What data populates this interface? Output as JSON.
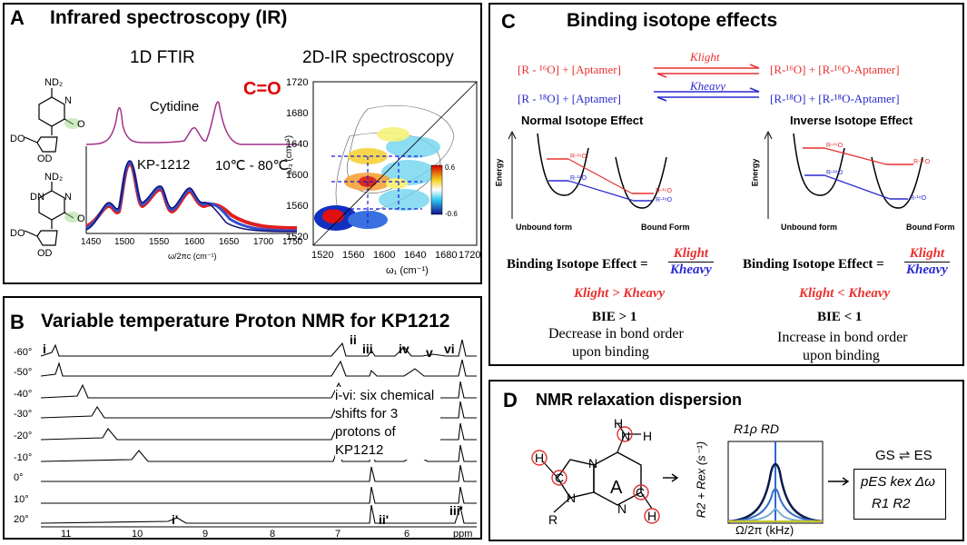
{
  "panelA": {
    "letter": "A",
    "title": "Infrared spectroscopy (IR)",
    "sub_1d": "1D FTIR",
    "sub_2d": "2D-IR spectroscopy",
    "label_cytidine": "Cytidine",
    "label_co": "C=O",
    "label_kp": "KP-1212",
    "label_temp": "10℃ - 80℃",
    "x_ticks_1d": [
      "1450",
      "1500",
      "1550",
      "1600",
      "1650",
      "1700",
      "1750"
    ],
    "x_label_1d": "ω/2πc (cm⁻¹)",
    "ticks_2d_x": [
      "1520",
      "1560",
      "1600",
      "1640",
      "1680",
      "1720"
    ],
    "ticks_2d_y": [
      "1720",
      "1680",
      "1640",
      "1600",
      "1560",
      "1520"
    ],
    "x_label_2d": "ω₁ (cm⁻¹)",
    "y_label_2d": "ω₃ (cm⁻¹)",
    "colorbar_max": "0.6",
    "colorbar_min": "-0.6",
    "struct_nd2": "ND₂",
    "struct_n": "N",
    "struct_do": "DO",
    "struct_od": "OD",
    "struct_dn": "DN",
    "struct_o": "O",
    "color_cytidine": "#a0308a",
    "color_co": "#e00000"
  },
  "panelB": {
    "letter": "B",
    "title": "Variable temperature Proton NMR for KP1212",
    "temps": [
      "-60°",
      "-50°",
      "-40°",
      "-30°",
      "-20°",
      "-10°",
      "0°",
      "10°",
      "20°"
    ],
    "peak_labels_top": [
      "i",
      "ii",
      "iii",
      "iv",
      "v",
      "vi"
    ],
    "peak_labels_bottom": [
      "i'",
      "ii'",
      "iii'"
    ],
    "x_ticks": [
      "11",
      "10",
      "9",
      "8",
      "7",
      "6"
    ],
    "x_unit": "ppm",
    "note": "i-vi: six chemical shifts for 3 protons of KP1212"
  },
  "panelC": {
    "letter": "C",
    "title": "Binding isotope effects",
    "eq1_left": "[R - ¹⁶O]   +   [Aptamer]",
    "eq1_right": "[R-¹⁶O]   +   [R-¹⁶O-Aptamer]",
    "eq2_left": "[R - ¹⁸O]   +   [Aptamer]",
    "eq2_right": "[R-¹⁸O]   +   [R-¹⁸O-Aptamer]",
    "k_light": "Klight",
    "k_heavy": "Kheavy",
    "normal_title": "Normal Isotope Effect",
    "inverse_title": "Inverse Isotope Effect",
    "energy": "Energy",
    "unbound": "Unbound form",
    "bound": "Bound Form",
    "r16": "R-¹⁶O",
    "r18": "R-¹⁸O",
    "bie_label": "Binding Isotope Effect =",
    "k_light_frac": "Klight",
    "k_heavy_frac": "Kheavy",
    "normal_ineq": "Klight > Kheavy",
    "inverse_ineq": "Klight < Kheavy",
    "bie_gt": "BIE > 1",
    "bie_lt": "BIE < 1",
    "normal_desc1": "Decrease in bond order",
    "normal_desc2": "upon binding",
    "inverse_desc1": "Increase in bond order",
    "inverse_desc2": "upon binding",
    "color_light": "#e8312f",
    "color_heavy": "#2a2ad0"
  },
  "panelD": {
    "letter": "D",
    "title": "NMR relaxation dispersion",
    "ring_label": "A",
    "atom_h": "H",
    "atom_n": "N",
    "atom_c": "C",
    "atom_r": "R",
    "rd_title": "R1ρ RD",
    "y_axis": "R2 + Rex (s⁻¹)",
    "x_axis": "Ω/2π (kHz)",
    "gs_es": "GS ⇌ ES",
    "params1": "pES  kex  Δω",
    "params2": "R1   R2"
  }
}
